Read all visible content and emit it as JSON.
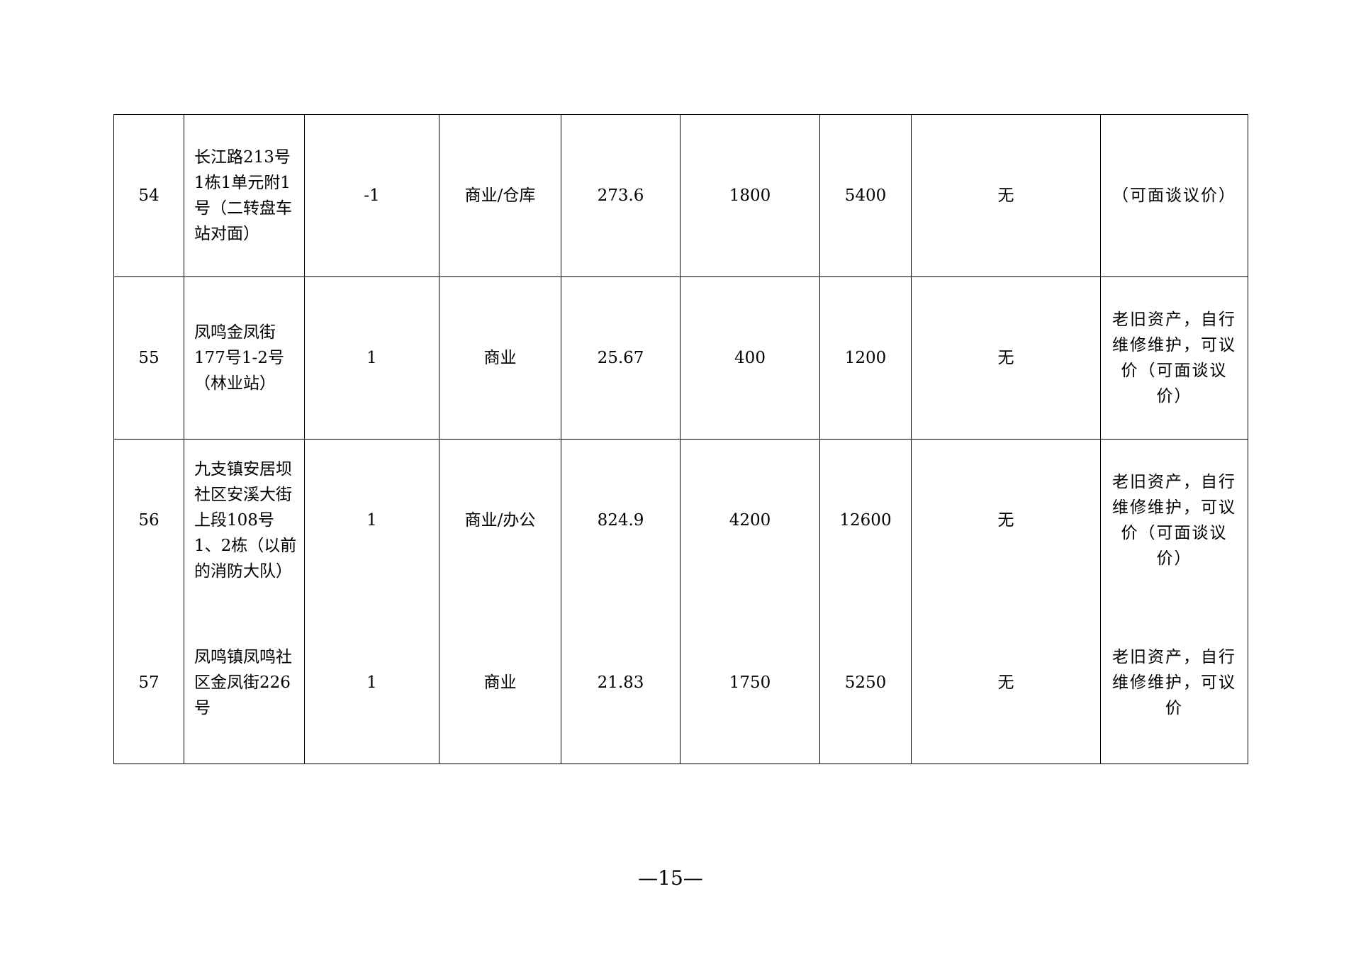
{
  "rows": [
    {
      "no": "54",
      "address": "长江路213号1栋1单元附1号（二转盘车站对面）",
      "floor": "-1",
      "use": "商业/仓库",
      "area": "273.6",
      "price_a": "1800",
      "price_b": "5400",
      "extra": "无",
      "note": "（可面谈议价）"
    },
    {
      "no": "55",
      "address": "凤鸣金凤街177号1-2号（林业站）",
      "floor": "1",
      "use": "商业",
      "area": "25.67",
      "price_a": "400",
      "price_b": "1200",
      "extra": "无",
      "note": "老旧资产，自行维修维护，可议价（可面谈议价）"
    },
    {
      "no": "56",
      "address": "九支镇安居坝社区安溪大街上段108号1、2栋（以前的消防大队）",
      "floor": "1",
      "use": "商业/办公",
      "area": "824.9",
      "price_a": "4200",
      "price_b": "12600",
      "extra": "无",
      "note": "老旧资产，自行维修维护，可议价（可面谈议价）"
    },
    {
      "no": "57",
      "address": "凤鸣镇凤鸣社区金凤街226号",
      "floor": "1",
      "use": "商业",
      "area": "21.83",
      "price_a": "1750",
      "price_b": "5250",
      "extra": "无",
      "note": "老旧资产，自行维修维护，可议价"
    }
  ],
  "page_number": "—15—"
}
